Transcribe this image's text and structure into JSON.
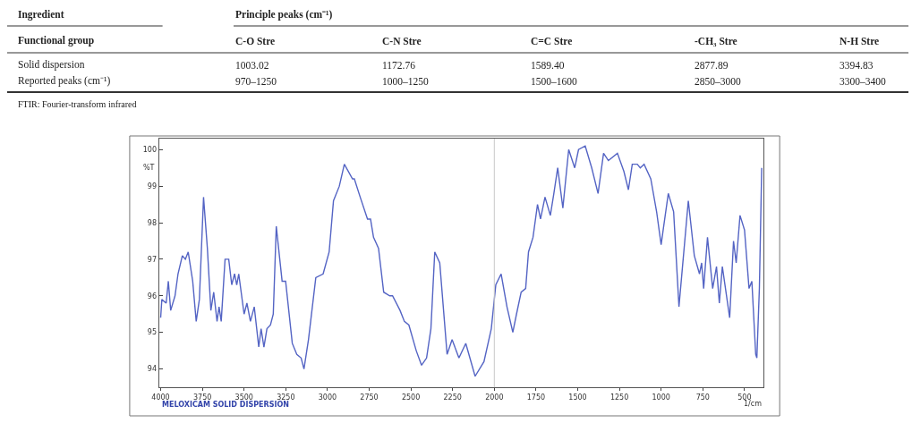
{
  "chart_data": [
    {
      "type": "other",
      "annotations": [
        "Ingredient",
        "Principle peaks (cm⁻¹)",
        "Functional group",
        "C-O Stre",
        "C-N Stre",
        "C=C Stre",
        "-CH₃ Stre",
        "N-H Stre",
        "Solid dispersion",
        "1003.02",
        "1172.76",
        "1589.40",
        "2877.89",
        "3394.83",
        "Reported peaks (cm⁻¹)",
        "970–1250",
        "1000–1250",
        "1500–1600",
        "2850–3000",
        "3300–3400",
        "FTIR: Fourier-transform infrared"
      ]
    },
    {
      "type": "line",
      "title": "MELOXICAM SOLID DISPERSION",
      "xlabel": "1/cm",
      "ylabel": "%T",
      "xlim": [
        4010,
        385
      ],
      "xticks": [
        4000,
        3750,
        3500,
        3250,
        3000,
        2750,
        2500,
        2250,
        2000,
        1750,
        1500,
        1250,
        1000,
        750,
        500
      ],
      "ylim": [
        93.5,
        100.3
      ],
      "yticks": [
        94,
        95,
        96,
        97,
        98,
        99,
        100
      ],
      "grid": false,
      "ref_lines": [
        {
          "axis": "x",
          "value": 2000,
          "color": "#c8c8c8"
        }
      ],
      "series": [
        {
          "color": "#5464c4",
          "x": [
            4000,
            3993,
            3967,
            3954,
            3940,
            3914,
            3896,
            3870,
            3852,
            3835,
            3808,
            3787,
            3768,
            3743,
            3720,
            3699,
            3682,
            3662,
            3650,
            3637,
            3614,
            3592,
            3574,
            3557,
            3544,
            3532,
            3500,
            3483,
            3462,
            3439,
            3412,
            3398,
            3381,
            3363,
            3342,
            3325,
            3307,
            3272,
            3251,
            3211,
            3184,
            3158,
            3141,
            3114,
            3070,
            3026,
            2990,
            2964,
            2929,
            2899,
            2850,
            2839,
            2804,
            2760,
            2742,
            2724,
            2694,
            2663,
            2627,
            2610,
            2565,
            2539,
            2512,
            2468,
            2436,
            2406,
            2380,
            2357,
            2327,
            2283,
            2253,
            2212,
            2171,
            2115,
            2062,
            2018,
            1991,
            1959,
            1924,
            1889,
            1867,
            1839,
            1812,
            1795,
            1768,
            1741,
            1723,
            1696,
            1664,
            1643,
            1620,
            1589,
            1554,
            1518,
            1495,
            1455,
            1416,
            1378,
            1345,
            1316,
            1262,
            1223,
            1196,
            1173,
            1143,
            1125,
            1102,
            1062,
            1027,
            1000,
            957,
            925,
            893,
            837,
            801,
            770,
            757,
            745,
            722,
            691,
            668,
            651,
            633,
            589,
            566,
            550,
            527,
            500,
            473,
            456,
            433,
            426,
            411,
            397
          ],
          "values": [
            95.4,
            95.9,
            95.8,
            96.4,
            95.6,
            96.0,
            96.6,
            97.1,
            97.0,
            97.2,
            96.4,
            95.3,
            95.9,
            98.7,
            97.3,
            95.6,
            96.1,
            95.3,
            95.7,
            95.3,
            97.0,
            97.0,
            96.3,
            96.6,
            96.3,
            96.6,
            95.5,
            95.8,
            95.3,
            95.7,
            94.6,
            95.1,
            94.6,
            95.1,
            95.2,
            95.5,
            97.9,
            96.4,
            96.4,
            94.7,
            94.4,
            94.3,
            94.0,
            94.8,
            96.5,
            96.6,
            97.2,
            98.6,
            99.0,
            99.6,
            99.2,
            99.2,
            98.7,
            98.1,
            98.1,
            97.6,
            97.3,
            96.1,
            96.0,
            96.0,
            95.6,
            95.3,
            95.2,
            94.5,
            94.1,
            94.3,
            95.1,
            97.2,
            96.9,
            94.4,
            94.8,
            94.3,
            94.7,
            93.8,
            94.2,
            95.1,
            96.3,
            96.6,
            95.7,
            95.0,
            95.5,
            96.1,
            96.2,
            97.2,
            97.6,
            98.5,
            98.1,
            98.7,
            98.2,
            98.8,
            99.5,
            98.4,
            100.0,
            99.5,
            100.0,
            100.1,
            99.5,
            98.8,
            99.9,
            99.7,
            99.9,
            99.4,
            98.9,
            99.6,
            99.6,
            99.5,
            99.6,
            99.2,
            98.3,
            97.4,
            98.8,
            98.3,
            95.7,
            98.6,
            97.1,
            96.6,
            96.9,
            96.2,
            97.6,
            96.2,
            96.8,
            95.8,
            96.8,
            95.4,
            97.5,
            96.9,
            98.2,
            97.8,
            96.2,
            96.4,
            94.4,
            94.3,
            96.2,
            99.5
          ]
        }
      ]
    }
  ]
}
